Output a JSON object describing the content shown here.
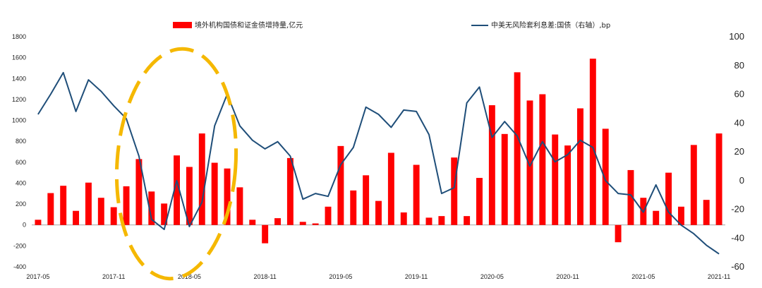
{
  "chart_data": {
    "type": "bar+line",
    "legend": {
      "bar": "境外机构国债和证金债增持量,亿元",
      "line": "中美无风险套利息差:国债（右轴）,bp"
    },
    "colors": {
      "bar": "#ff0000",
      "line": "#1f4e79",
      "highlight": "#f5b800"
    },
    "x_tick_labels": [
      "2017-05",
      "2017-11",
      "2018-05",
      "2018-11",
      "2019-05",
      "2019-11",
      "2020-05",
      "2020-11",
      "2021-05",
      "2021-11"
    ],
    "x_tick_positions": [
      0,
      6,
      12,
      18,
      24,
      30,
      36,
      42,
      48,
      54
    ],
    "y_left": {
      "min": -400,
      "max": 1800,
      "step": 200
    },
    "y_right": {
      "min": -60,
      "max": 100,
      "step": 20
    },
    "bar_values": [
      50,
      305,
      375,
      135,
      405,
      260,
      170,
      370,
      630,
      320,
      205,
      665,
      555,
      875,
      595,
      540,
      360,
      50,
      -175,
      65,
      640,
      30,
      15,
      175,
      755,
      330,
      475,
      230,
      690,
      120,
      575,
      70,
      85,
      645,
      85,
      450,
      1145,
      870,
      1460,
      1190,
      1250,
      865,
      760,
      1115,
      1590,
      920,
      -165,
      525,
      260,
      135,
      500,
      175,
      765,
      240,
      875
    ],
    "line_values": [
      46,
      60,
      75,
      48,
      70,
      62,
      52,
      43,
      17,
      -27,
      -34,
      0,
      -32,
      -15,
      38,
      60,
      38,
      28,
      22,
      27,
      17,
      -13,
      -9,
      -11,
      11,
      23,
      51,
      46,
      37,
      49,
      48,
      32,
      -9,
      -5,
      54,
      65,
      30,
      41,
      31,
      10,
      27,
      13,
      18,
      28,
      23,
      0,
      -9,
      -10,
      -22,
      -3,
      -22,
      -31,
      -37,
      -45,
      -51
    ]
  }
}
